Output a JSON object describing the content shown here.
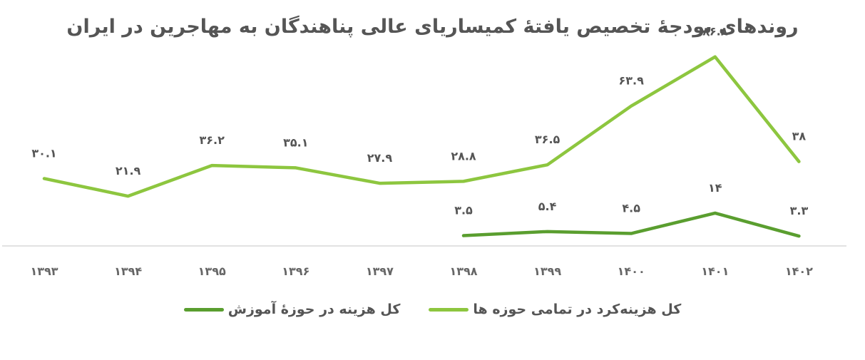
{
  "chart_data": {
    "type": "line",
    "title": "روندهای بودجهٔ تخصیص یافتهٔ کمیساریای عالی پناهندگان به مهاجرین در ایران",
    "categories": [
      "۱۳۹۳",
      "۱۳۹۴",
      "۱۳۹۵",
      "۱۳۹۶",
      "۱۳۹۷",
      "۱۳۹۸",
      "۱۳۹۹",
      "۱۴۰۰",
      "۱۴۰۱",
      "۱۴۰۲"
    ],
    "series": [
      {
        "name": "کل هزینه‌کرد در تمامی حوزه ها",
        "color": "#8dc63f",
        "values": [
          30.1,
          21.9,
          36.2,
          35.1,
          27.9,
          28.8,
          36.5,
          63.9,
          86.8,
          38
        ],
        "labels": [
          "۳۰.۱",
          "۲۱.۹",
          "۳۶.۲",
          "۳۵.۱",
          "۲۷.۹",
          "۲۸.۸",
          "۳۶.۵",
          "۶۳.۹",
          "۸۶.۸",
          "۳۸"
        ]
      },
      {
        "name": "کل هزینه در حوزهٔ آموزش",
        "color": "#5a9e2f",
        "values": [
          null,
          null,
          null,
          null,
          null,
          3.5,
          5.4,
          4.5,
          14,
          3.3
        ],
        "labels": [
          null,
          null,
          null,
          null,
          null,
          "۳.۵",
          "۵.۴",
          "۴.۵",
          "۱۴",
          "۳.۳"
        ]
      }
    ],
    "ylim": [
      -1.3,
      100
    ],
    "grid": false,
    "legend_position": "bottom"
  }
}
